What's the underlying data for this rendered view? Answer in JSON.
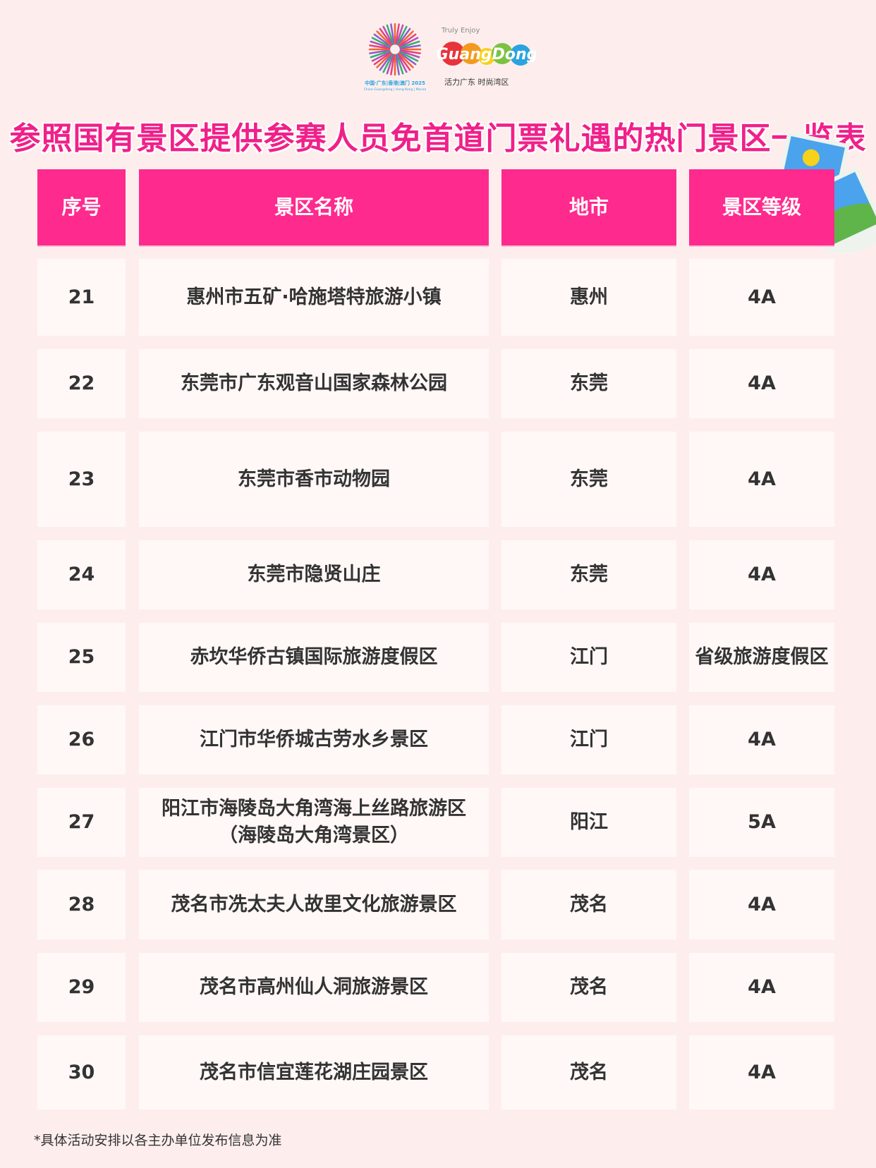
{
  "header": {
    "logo_games_text": "中国·广东|香港|澳门 2025 China-Guangdong | Hong Kong | Macao",
    "logo_gd_text": "Truly Enjoy GuangDong 活力广东 时尚湾区",
    "title": "参照国有景区提供参赛人员免首道门票礼遇的热门景区一览表"
  },
  "table": {
    "columns": [
      "序号",
      "景区名称",
      "地市",
      "景区等级"
    ],
    "rows": [
      [
        "21",
        "惠州市五矿·哈施塔特旅游小镇",
        "惠州",
        "4A"
      ],
      [
        "22",
        "东莞市广东观音山国家森林公园",
        "东莞",
        "4A"
      ],
      [
        "23",
        "东莞市香市动物园",
        "东莞",
        "4A"
      ],
      [
        "24",
        "东莞市隐贤山庄",
        "东莞",
        "4A"
      ],
      [
        "25",
        "赤坎华侨古镇国际旅游度假区",
        "江门",
        "省级旅游度假区"
      ],
      [
        "26",
        "江门市华侨城古劳水乡景区",
        "江门",
        "4A"
      ],
      [
        "27",
        "阳江市海陵岛大角湾海上丝路旅游区（海陵岛大角湾景区）",
        "阳江",
        "5A"
      ],
      [
        "28",
        "茂名市冼太夫人故里文化旅游景区",
        "茂名",
        "4A"
      ],
      [
        "29",
        "茂名市高州仙人洞旅游景区",
        "茂名",
        "4A"
      ],
      [
        "30",
        "茂名市信宜莲花湖庄园景区",
        "茂名",
        "4A"
      ]
    ]
  },
  "footnote": "*具体活动安排以各主办单位发布信息为准",
  "colors": {
    "accent": "#fe2a8e",
    "background": "#fdeeed",
    "cell": "#fff8f7"
  }
}
